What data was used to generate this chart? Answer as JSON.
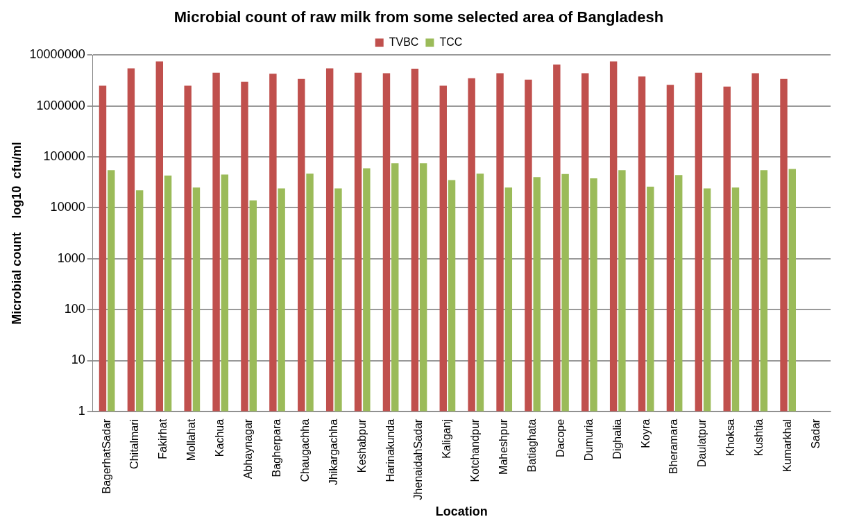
{
  "chart_data": {
    "type": "bar",
    "title": "Microbial count of raw milk from some selected area of Bangladesh",
    "xlabel": "Location",
    "ylabel": "Microbial count    log10  cfu/ml",
    "categories": [
      "BagerhatSadar",
      "Chitalmari",
      "Fakirhat",
      "Mollahat",
      "Kachua",
      "Abhaynagar",
      "Bagherpara",
      "Chaugachha",
      "Jhikargachha",
      "Keshabpur",
      "Harinakunda",
      "JhenaidahSadar",
      "Kaliganj",
      "Kotchandpur",
      "Maheshpur",
      "Batiaghata",
      "Dacope",
      "Dumuria",
      "Dighalia",
      "Koyra",
      "Bheramara",
      "Daulatpur",
      "Khoksa",
      "Kushtia",
      "Kumarkhal",
      "Sadar"
    ],
    "series": [
      {
        "name": "TVBC",
        "color": "#c0504d",
        "values": [
          2500000,
          5500000,
          7500000,
          2500000,
          4500000,
          3000000,
          4300000,
          3400000,
          5500000,
          4500000,
          4400000,
          5400000,
          2500000,
          3500000,
          4400000,
          3300000,
          6500000,
          4400000,
          7500000,
          3800000,
          2600000,
          4500000,
          2400000,
          4400000,
          3400000,
          null
        ]
      },
      {
        "name": "TCC",
        "color": "#9bbb59",
        "values": [
          55000,
          22000,
          43000,
          25000,
          45000,
          14000,
          24000,
          47000,
          24000,
          60000,
          75000,
          75000,
          35000,
          47000,
          25000,
          40000,
          46000,
          38000,
          55000,
          26000,
          44000,
          24000,
          25000,
          55000,
          58000,
          null
        ]
      }
    ],
    "log": "y",
    "ylim": [
      1,
      10000000
    ],
    "yticks": [
      1,
      10,
      100,
      1000,
      10000,
      100000,
      1000000,
      10000000
    ],
    "grid": "y",
    "legend": "top"
  }
}
